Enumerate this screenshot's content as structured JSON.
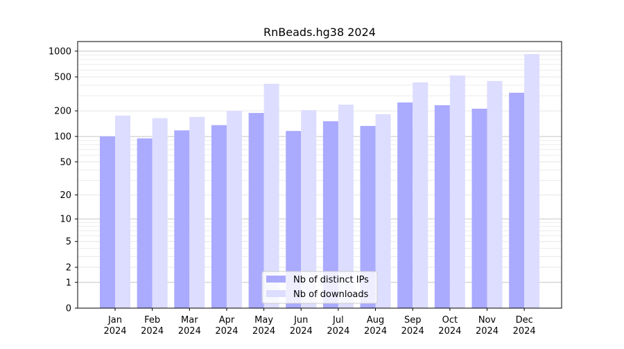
{
  "chart_data": {
    "type": "bar",
    "title": "RnBeads.hg38 2024",
    "xlabel": "",
    "ylabel": "",
    "yscale": "symlog (log10(1+y))",
    "ylim": [
      0,
      1200
    ],
    "yticks": [
      0,
      1,
      2,
      5,
      10,
      20,
      50,
      100,
      200,
      500,
      1000
    ],
    "grid": true,
    "legend_position": "bottom-center",
    "categories": [
      "Jan\n2024",
      "Feb\n2024",
      "Mar\n2024",
      "Apr\n2024",
      "May\n2024",
      "Jun\n2024",
      "Jul\n2024",
      "Aug\n2024",
      "Sep\n2024",
      "Oct\n2024",
      "Nov\n2024",
      "Dec\n2024"
    ],
    "series": [
      {
        "name": "Nb of distinct IPs",
        "color": "#aaaaff",
        "values": [
          100,
          95,
          118,
          136,
          189,
          116,
          151,
          133,
          251,
          233,
          212,
          326
        ]
      },
      {
        "name": "Nb of downloads",
        "color": "#ddddff",
        "values": [
          176,
          164,
          170,
          200,
          415,
          204,
          237,
          183,
          431,
          519,
          448,
          925
        ]
      }
    ]
  }
}
